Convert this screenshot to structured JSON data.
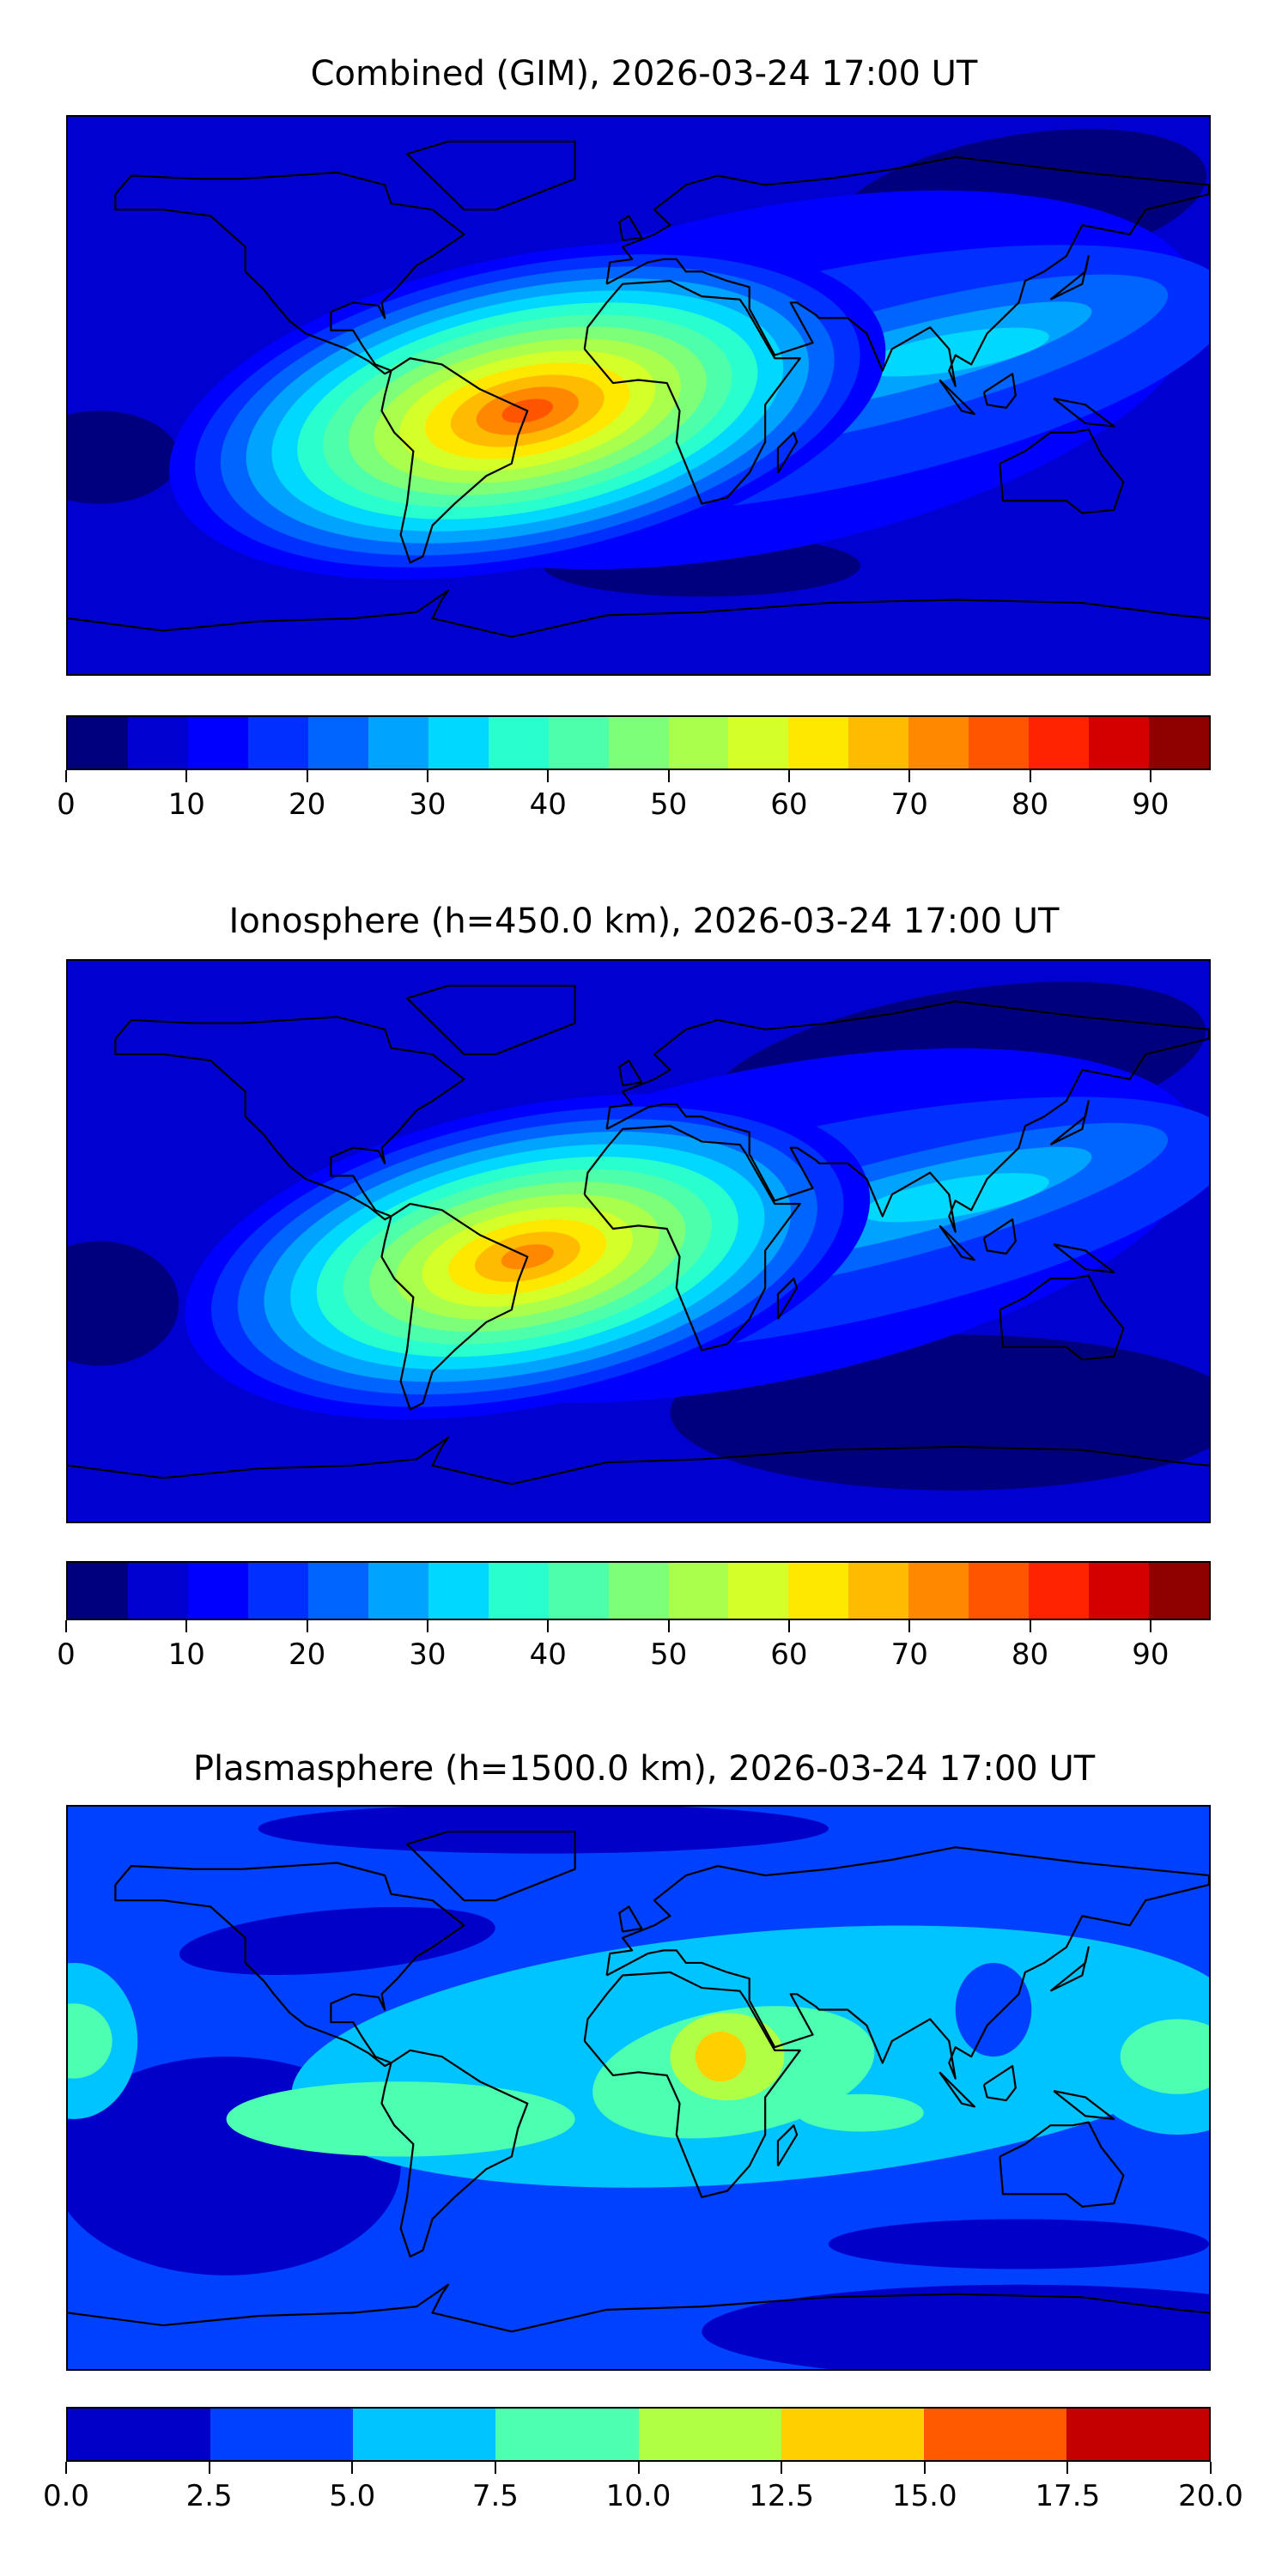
{
  "panels": [
    {
      "title": "Combined (GIM), 2026-03-24 17:00 UT",
      "colorbar": {
        "ticks": [
          "0",
          "10",
          "20",
          "30",
          "40",
          "50",
          "60",
          "70",
          "80",
          "90"
        ],
        "tick_values": [
          0,
          10,
          20,
          30,
          40,
          50,
          60,
          70,
          80,
          90
        ],
        "range": [
          0,
          95
        ],
        "colors": [
          "#00007f",
          "#0000d0",
          "#0000ff",
          "#0030ff",
          "#0064ff",
          "#00a4ff",
          "#00d8ff",
          "#29ffce",
          "#4dffaa",
          "#7dff7a",
          "#aaff4d",
          "#d4ff29",
          "#ffe800",
          "#ffbb00",
          "#ff8800",
          "#ff5500",
          "#ff2200",
          "#d40000",
          "#8f0000"
        ]
      }
    },
    {
      "title": "Ionosphere  (h=450.0 km), 2026-03-24 17:00 UT",
      "colorbar": {
        "ticks": [
          "0",
          "10",
          "20",
          "30",
          "40",
          "50",
          "60",
          "70",
          "80",
          "90"
        ],
        "tick_values": [
          0,
          10,
          20,
          30,
          40,
          50,
          60,
          70,
          80,
          90
        ],
        "range": [
          0,
          95
        ],
        "colors": [
          "#00007f",
          "#0000d0",
          "#0000ff",
          "#0030ff",
          "#0064ff",
          "#00a4ff",
          "#00d8ff",
          "#29ffce",
          "#4dffaa",
          "#7dff7a",
          "#aaff4d",
          "#d4ff29",
          "#ffe800",
          "#ffbb00",
          "#ff8800",
          "#ff5500",
          "#ff2200",
          "#d40000",
          "#8f0000"
        ]
      }
    },
    {
      "title": "Plasmasphere (h=1500.0 km), 2026-03-24 17:00 UT",
      "colorbar": {
        "ticks": [
          "0.0",
          "2.5",
          "5.0",
          "7.5",
          "10.0",
          "12.5",
          "15.0",
          "17.5",
          "20.0"
        ],
        "tick_values": [
          0,
          2.5,
          5,
          7.5,
          10,
          12.5,
          15,
          17.5,
          20
        ],
        "range": [
          0,
          20
        ],
        "colors": [
          "#0000c8",
          "#0040ff",
          "#00c4ff",
          "#4dffb0",
          "#b0ff45",
          "#ffd000",
          "#ff5a00",
          "#c40000"
        ]
      }
    }
  ],
  "chart_data": [
    {
      "type": "heatmap",
      "title": "Combined (GIM), 2026-03-24 17:00 UT",
      "projection": "equirectangular world map",
      "max_region": "South Atlantic / Brazil",
      "max_level_range": [
        80,
        85
      ],
      "colorbar_range": [
        0,
        95
      ],
      "colorbar_step": 5
    },
    {
      "type": "heatmap",
      "title": "Ionosphere  (h=450.0 km), 2026-03-24 17:00 UT",
      "projection": "equirectangular world map",
      "max_region": "South America / South Atlantic",
      "max_level_range": [
        70,
        75
      ],
      "colorbar_range": [
        0,
        95
      ],
      "colorbar_step": 5
    },
    {
      "type": "heatmap",
      "title": "Plasmasphere (h=1500.0 km), 2026-03-24 17:00 UT",
      "projection": "equirectangular world map",
      "max_region": "East Africa",
      "max_level_range": [
        12.5,
        15
      ],
      "colorbar_range": [
        0,
        20
      ],
      "colorbar_step": 2.5
    }
  ]
}
